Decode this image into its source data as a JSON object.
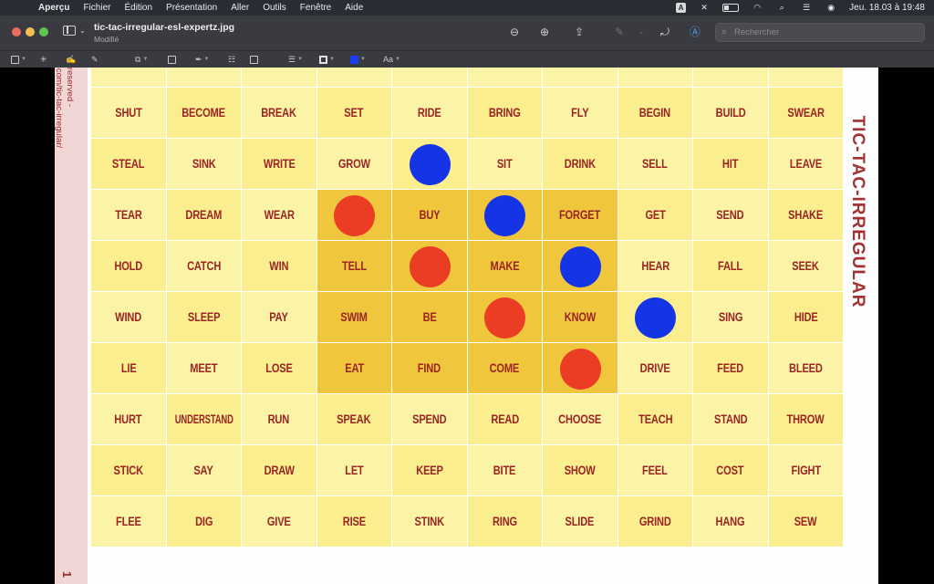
{
  "menubar": {
    "apple": "",
    "app_name": "Aperçu",
    "items": [
      "Fichier",
      "Édition",
      "Présentation",
      "Aller",
      "Outils",
      "Fenêtre",
      "Aide"
    ],
    "status_a": "A",
    "clock": "Jeu. 18.03 à 19:48"
  },
  "window": {
    "title": "tic-tac-irregular-esl-expertz.jpg",
    "subtitle": "Modifié",
    "search_placeholder": "Rechercher"
  },
  "markup": {
    "text_style": "Aa"
  },
  "document": {
    "credit_line1": "created by ESL Expertz - All rights reserved -",
    "credit_line2": "Instructions here https://eslexpertz.com/tic-tac-irregular/",
    "page_number": "1",
    "game_title": "TIC-TAC-IRREGULAR"
  },
  "board": {
    "rows": [
      [
        "SHUT",
        "BECOME",
        "BREAK",
        "SET",
        "RIDE",
        "BRING",
        "FLY",
        "BEGIN",
        "BUILD",
        "SWEAR"
      ],
      [
        "STEAL",
        "SINK",
        "WRITE",
        "GROW",
        "",
        "SIT",
        "DRINK",
        "SELL",
        "HIT",
        "LEAVE"
      ],
      [
        "TEAR",
        "DREAM",
        "WEAR",
        "",
        "BUY",
        "",
        "FORGET",
        "GET",
        "SEND",
        "SHAKE"
      ],
      [
        "HOLD",
        "CATCH",
        "WIN",
        "TELL",
        "",
        "MAKE",
        "",
        "HEAR",
        "FALL",
        "SEEK"
      ],
      [
        "WIND",
        "SLEEP",
        "PAY",
        "SWIM",
        "BE",
        "",
        "KNOW",
        "",
        "SING",
        "HIDE"
      ],
      [
        "LIE",
        "MEET",
        "LOSE",
        "EAT",
        "FIND",
        "COME",
        "",
        "DRIVE",
        "FEED",
        "BLEED"
      ],
      [
        "HURT",
        "UNDERSTAND",
        "RUN",
        "SPEAK",
        "SPEND",
        "READ",
        "CHOOSE",
        "TEACH",
        "STAND",
        "THROW"
      ],
      [
        "STICK",
        "SAY",
        "DRAW",
        "LET",
        "KEEP",
        "BITE",
        "SHOW",
        "FEEL",
        "COST",
        "FIGHT"
      ],
      [
        "FLEE",
        "DIG",
        "GIVE",
        "RISE",
        "STINK",
        "RING",
        "SLIDE",
        "GRIND",
        "HANG",
        "SEW"
      ]
    ],
    "highlight_rows": [
      2,
      3,
      4,
      5
    ],
    "highlight_cols": [
      3,
      4,
      5,
      6
    ],
    "tokens": [
      {
        "color": "blue",
        "row": 1,
        "col": 4
      },
      {
        "color": "red",
        "row": 2,
        "col": 3
      },
      {
        "color": "blue",
        "row": 2,
        "col": 5
      },
      {
        "color": "red",
        "row": 3,
        "col": 4
      },
      {
        "color": "blue",
        "row": 3,
        "col": 6
      },
      {
        "color": "red",
        "row": 4,
        "col": 5
      },
      {
        "color": "blue",
        "row": 4,
        "col": 7
      },
      {
        "color": "red",
        "row": 5,
        "col": 6
      }
    ],
    "colors": {
      "cell": "#fbf3a6",
      "cell_alt": "#fbee8f",
      "highlight": "#f0c63c",
      "word": "#9b2424",
      "red_token": "#ea3d24",
      "blue_token": "#1434e6"
    }
  }
}
